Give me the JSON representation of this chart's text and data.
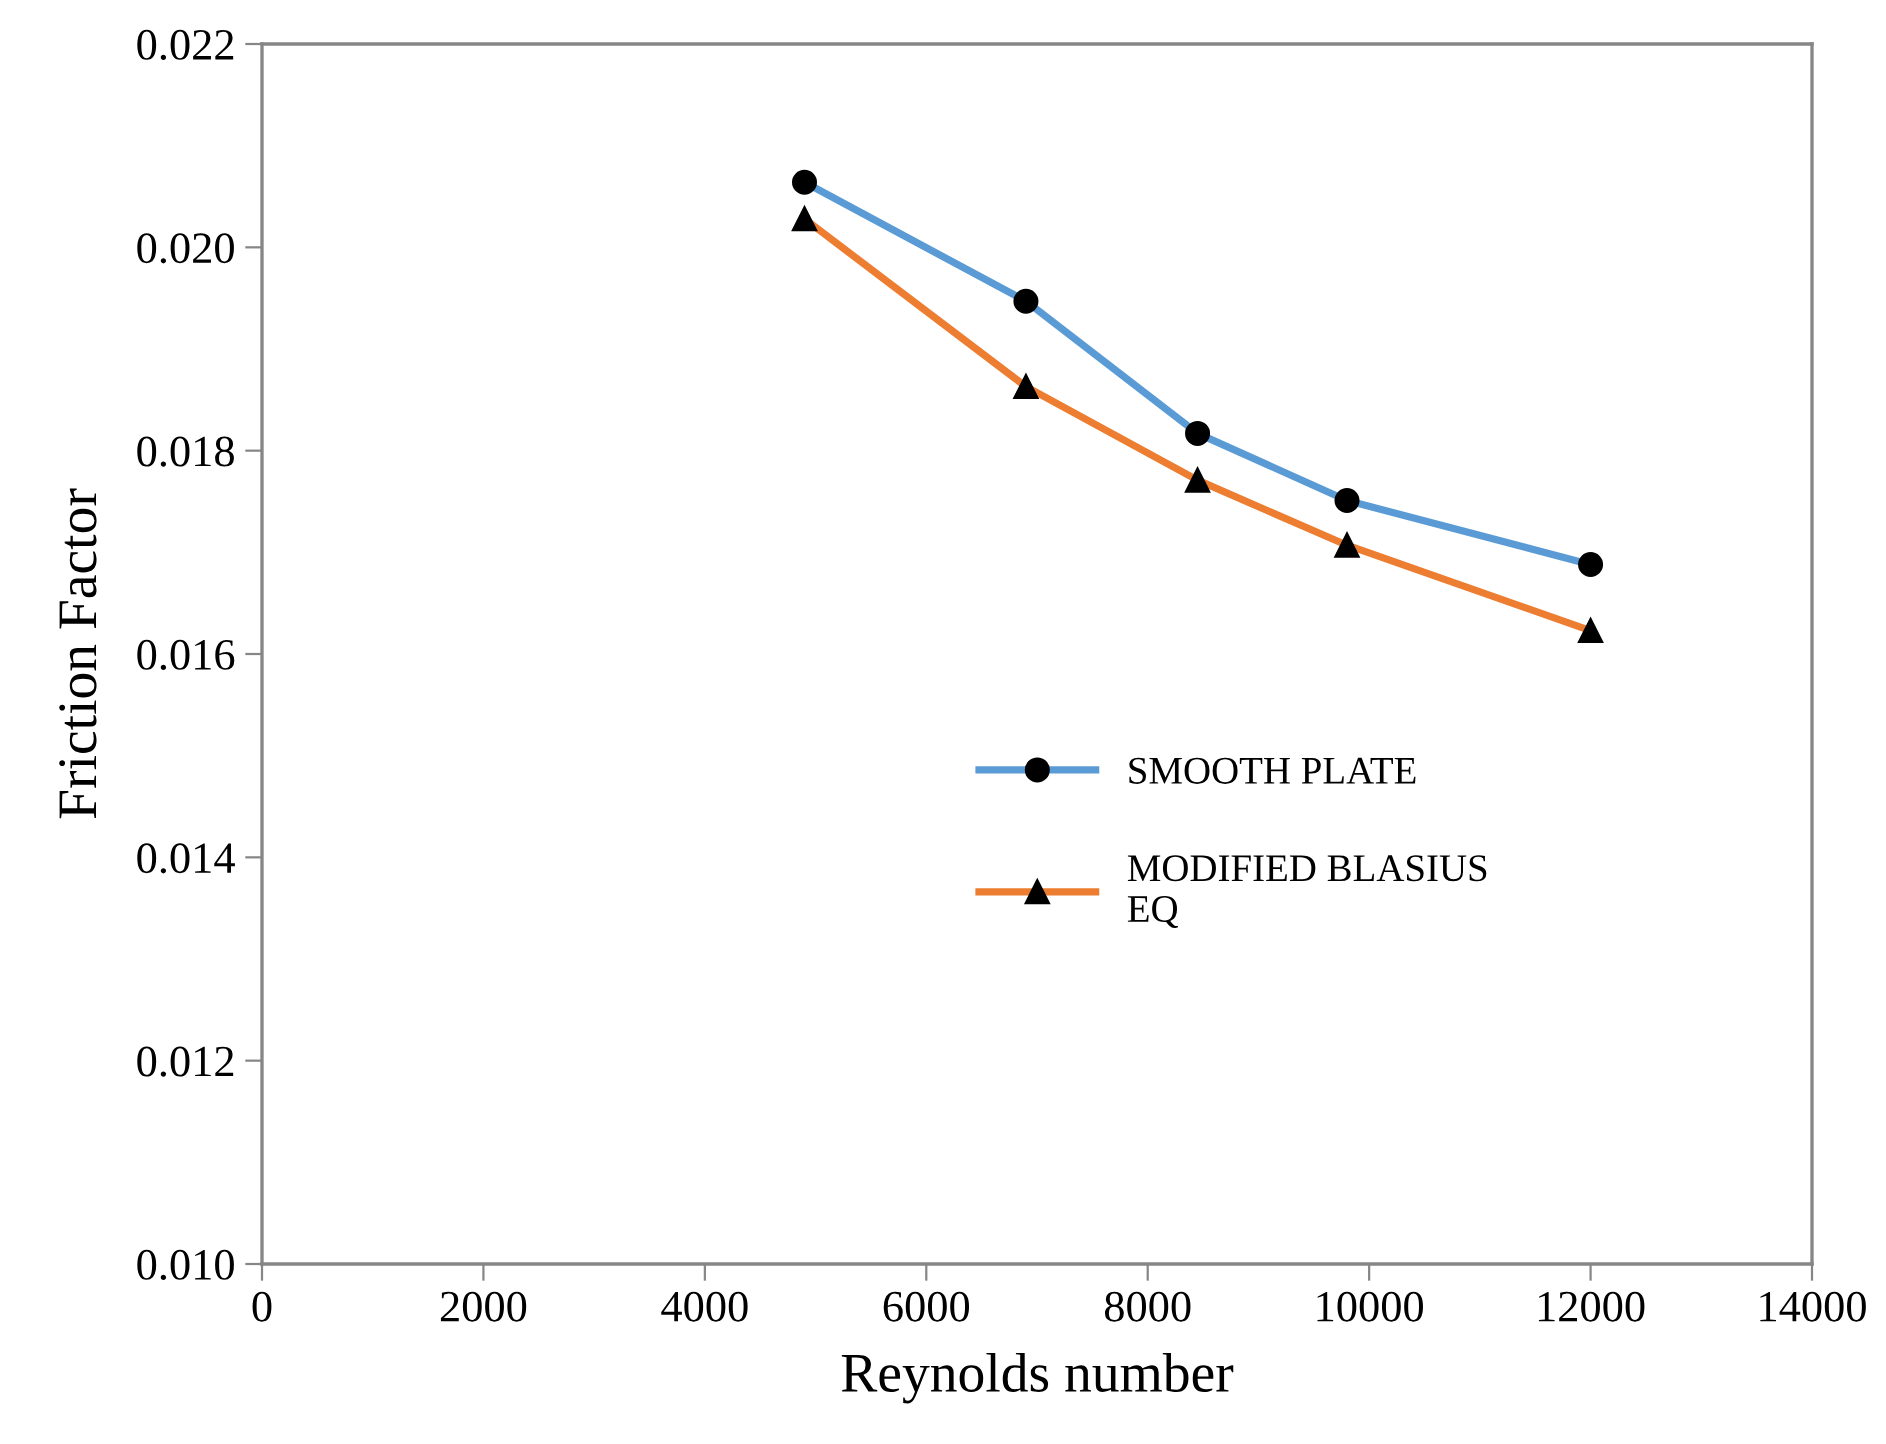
{
  "chart_data": {
    "type": "line",
    "xlabel": "Reynolds number",
    "ylabel": "Friction Factor",
    "x": [
      4900,
      6900,
      8450,
      9800,
      12000
    ],
    "series": [
      {
        "name": "SMOOTH PLATE",
        "color": "#5b9bd5",
        "marker": "circle",
        "values": [
          0.02064,
          0.01947,
          0.01817,
          0.01751,
          0.01688
        ]
      },
      {
        "name": "MODIFIED BLASIUS\nEQ",
        "color": "#ed7d31",
        "marker": "triangle",
        "values": [
          0.02028,
          0.01863,
          0.01771,
          0.01707,
          0.01623
        ]
      }
    ],
    "xlim": [
      0,
      14000
    ],
    "xticks": [
      0,
      2000,
      4000,
      6000,
      8000,
      10000,
      12000,
      14000
    ],
    "ylim": [
      0.01,
      0.022
    ],
    "yticks": [
      {
        "value": 0.01,
        "label": "0.010"
      },
      {
        "value": 0.012,
        "label": "0.012"
      },
      {
        "value": 0.014,
        "label": "0.014"
      },
      {
        "value": 0.016,
        "label": "0.016"
      },
      {
        "value": 0.018,
        "label": "0.018"
      },
      {
        "value": 0.02,
        "label": "0.020"
      },
      {
        "value": 0.022,
        "label": "0.022"
      }
    ],
    "grid": false,
    "legend": "center right",
    "line_style": "solid"
  }
}
